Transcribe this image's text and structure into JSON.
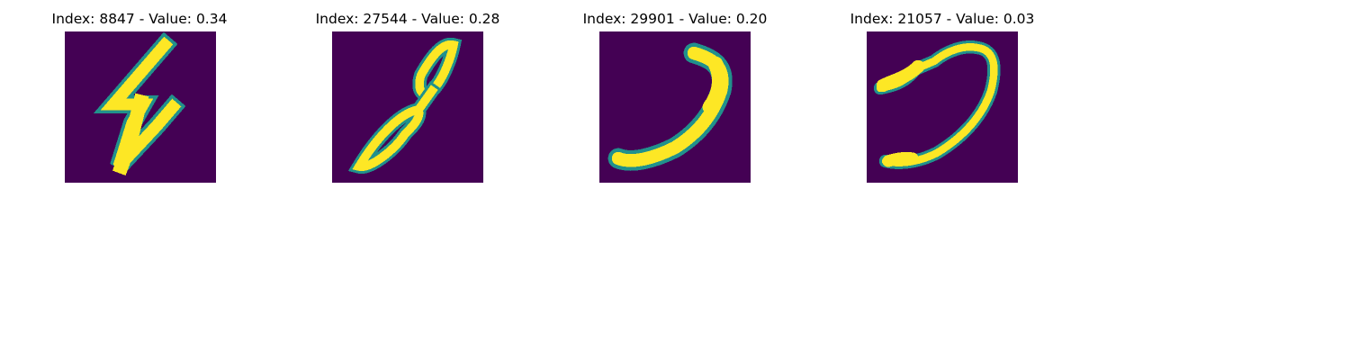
{
  "colors": {
    "background": "#440154",
    "mid": "#21918c",
    "stroke": "#fde725"
  },
  "panels": [
    {
      "title": "Index: 8847 - Value: 0.34",
      "glyph": "zigzag-digit"
    },
    {
      "title": "Index: 27544 - Value: 0.28",
      "glyph": "loop-digit"
    },
    {
      "title": "Index: 29901 - Value: 0.20",
      "glyph": "curve-digit"
    },
    {
      "title": "Index: 21057 - Value: 0.03",
      "glyph": "hook-digit"
    }
  ]
}
